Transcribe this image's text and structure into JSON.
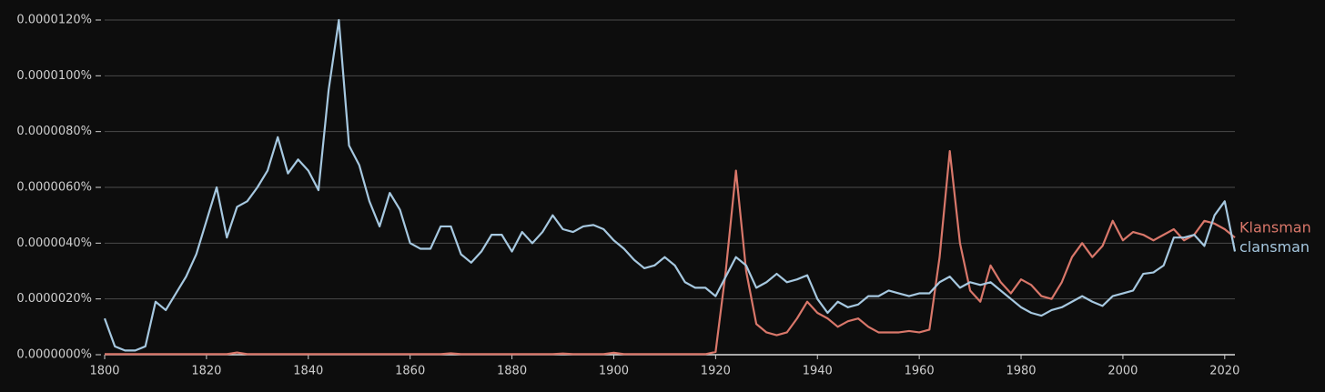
{
  "chart_data": {
    "type": "line",
    "x": [
      1800,
      1802,
      1804,
      1806,
      1808,
      1810,
      1812,
      1814,
      1816,
      1818,
      1820,
      1822,
      1824,
      1826,
      1828,
      1830,
      1832,
      1834,
      1836,
      1838,
      1840,
      1842,
      1844,
      1846,
      1848,
      1850,
      1852,
      1854,
      1856,
      1858,
      1860,
      1862,
      1864,
      1866,
      1868,
      1870,
      1872,
      1874,
      1876,
      1878,
      1880,
      1882,
      1884,
      1886,
      1888,
      1890,
      1892,
      1894,
      1896,
      1898,
      1900,
      1902,
      1904,
      1906,
      1908,
      1910,
      1912,
      1914,
      1916,
      1918,
      1920,
      1922,
      1924,
      1926,
      1928,
      1930,
      1932,
      1934,
      1936,
      1938,
      1940,
      1942,
      1944,
      1946,
      1948,
      1950,
      1952,
      1954,
      1956,
      1958,
      1960,
      1962,
      1964,
      1966,
      1968,
      1970,
      1972,
      1974,
      1976,
      1978,
      1980,
      1982,
      1984,
      1986,
      1988,
      1990,
      1992,
      1994,
      1996,
      1998,
      2000,
      2002,
      2004,
      2006,
      2008,
      2010,
      2012,
      2014,
      2016,
      2018,
      2020,
      2022
    ],
    "series": [
      {
        "name": "Klansman",
        "color": "#d9776a",
        "values": [
          2e-08,
          2e-08,
          2e-08,
          2e-08,
          2e-08,
          2e-08,
          2e-08,
          2e-08,
          2e-08,
          2e-08,
          2e-08,
          2e-08,
          2e-08,
          8e-08,
          2e-08,
          2e-08,
          2e-08,
          2e-08,
          2e-08,
          2e-08,
          2e-08,
          2e-08,
          2e-08,
          2e-08,
          2e-08,
          2e-08,
          2e-08,
          2e-08,
          2e-08,
          2e-08,
          2e-08,
          2e-08,
          2e-08,
          2e-08,
          5e-08,
          2e-08,
          2e-08,
          2e-08,
          2e-08,
          2e-08,
          2e-08,
          2e-08,
          2e-08,
          2e-08,
          2e-08,
          4e-08,
          2e-08,
          2e-08,
          2e-08,
          2e-08,
          7e-08,
          2e-08,
          2e-08,
          2e-08,
          2e-08,
          2e-08,
          2e-08,
          2e-08,
          2e-08,
          2e-08,
          1e-07,
          3e-06,
          6.6e-06,
          3e-06,
          1.1e-06,
          8e-07,
          7e-07,
          8e-07,
          1.3e-06,
          1.9e-06,
          1.5e-06,
          1.3e-06,
          1e-06,
          1.2e-06,
          1.3e-06,
          1e-06,
          8e-07,
          8e-07,
          8e-07,
          8.5e-07,
          8e-07,
          9e-07,
          3.5e-06,
          7.3e-06,
          4e-06,
          2.3e-06,
          1.9e-06,
          3.2e-06,
          2.6e-06,
          2.2e-06,
          2.7e-06,
          2.5e-06,
          2.1e-06,
          2e-06,
          2.6e-06,
          3.5e-06,
          4e-06,
          3.5e-06,
          3.9e-06,
          4.8e-06,
          4.1e-06,
          4.4e-06,
          4.3e-06,
          4.1e-06,
          4.3e-06,
          4.5e-06,
          4.1e-06,
          4.3e-06,
          4.8e-06,
          4.7e-06,
          4.5e-06,
          4.2e-06
        ]
      },
      {
        "name": "clansman",
        "color": "#a6c8e0",
        "values": [
          1.3e-06,
          3e-07,
          1.5e-07,
          1.5e-07,
          3e-07,
          1.9e-06,
          1.6e-06,
          2.2e-06,
          2.8e-06,
          3.6e-06,
          4.8e-06,
          6e-06,
          4.2e-06,
          5.3e-06,
          5.5e-06,
          6e-06,
          6.6e-06,
          7.8e-06,
          6.5e-06,
          7e-06,
          6.6e-06,
          5.9e-06,
          9.5e-06,
          1.2e-05,
          7.5e-06,
          6.8e-06,
          5.5e-06,
          4.6e-06,
          5.8e-06,
          5.2e-06,
          4e-06,
          3.8e-06,
          3.8e-06,
          4.6e-06,
          4.6e-06,
          3.6e-06,
          3.3e-06,
          3.7e-06,
          4.3e-06,
          4.3e-06,
          3.7e-06,
          4.4e-06,
          4e-06,
          4.4e-06,
          5e-06,
          4.5e-06,
          4.4e-06,
          4.6e-06,
          4.65e-06,
          4.5e-06,
          4.1e-06,
          3.8e-06,
          3.4e-06,
          3.1e-06,
          3.2e-06,
          3.5e-06,
          3.2e-06,
          2.6e-06,
          2.4e-06,
          2.4e-06,
          2.1e-06,
          2.8e-06,
          3.5e-06,
          3.2e-06,
          2.4e-06,
          2.6e-06,
          2.9e-06,
          2.6e-06,
          2.7e-06,
          2.85e-06,
          2e-06,
          1.5e-06,
          1.9e-06,
          1.7e-06,
          1.8e-06,
          2.1e-06,
          2.1e-06,
          2.3e-06,
          2.2e-06,
          2.1e-06,
          2.2e-06,
          2.2e-06,
          2.6e-06,
          2.8e-06,
          2.4e-06,
          2.6e-06,
          2.5e-06,
          2.6e-06,
          2.3e-06,
          2e-06,
          1.7e-06,
          1.5e-06,
          1.4e-06,
          1.6e-06,
          1.7e-06,
          1.9e-06,
          2.1e-06,
          1.9e-06,
          1.75e-06,
          2.1e-06,
          2.2e-06,
          2.3e-06,
          2.9e-06,
          2.95e-06,
          3.2e-06,
          4.2e-06,
          4.2e-06,
          4.3e-06,
          3.9e-06,
          5e-06,
          5.5e-06,
          3.7e-06
        ]
      }
    ],
    "xlim": [
      1800,
      2022
    ],
    "xticks": [
      1800,
      1820,
      1840,
      1860,
      1880,
      1900,
      1920,
      1940,
      1960,
      1980,
      2000,
      2020
    ],
    "ylim": [
      0,
      1.2e-05
    ],
    "yticks": [
      {
        "value": 0,
        "label": "0.0000000%"
      },
      {
        "value": 2e-06,
        "label": "0.0000020%"
      },
      {
        "value": 4e-06,
        "label": "0.0000040%"
      },
      {
        "value": 6e-06,
        "label": "0.0000060%"
      },
      {
        "value": 8e-06,
        "label": "0.0000080%"
      },
      {
        "value": 1e-05,
        "label": "0.0000100%"
      },
      {
        "value": 1.2e-05,
        "label": "0.0000120%"
      }
    ],
    "grid": true
  }
}
